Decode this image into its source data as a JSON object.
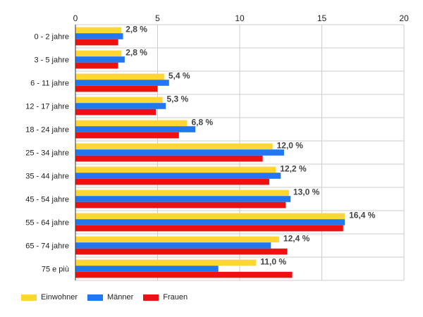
{
  "chart_data": {
    "type": "bar",
    "orientation": "horizontal",
    "xlim": [
      0,
      20
    ],
    "xticks": [
      "0",
      "5",
      "10",
      "15",
      "20"
    ],
    "categories": [
      "0 - 2 jahre",
      "3 - 5 jahre",
      "6 - 11 jahre",
      "12 - 17 jahre",
      "18 - 24 jahre",
      "25 - 34 jahre",
      "35 - 44 jahre",
      "45 - 54 jahre",
      "55 - 64 jahre",
      "65 - 74 jahre",
      "75 e più"
    ],
    "series": [
      {
        "name": "Einwohner",
        "color": "#ffd633",
        "values": [
          2.8,
          2.8,
          5.4,
          5.3,
          6.8,
          12.0,
          12.2,
          13.0,
          16.4,
          12.4,
          11.0
        ]
      },
      {
        "name": "Männer",
        "color": "#2277ee",
        "values": [
          2.9,
          3.0,
          5.7,
          5.5,
          7.3,
          12.7,
          12.5,
          13.1,
          16.4,
          11.9,
          8.7
        ]
      },
      {
        "name": "Frauen",
        "color": "#ee1111",
        "values": [
          2.6,
          2.6,
          5.0,
          4.9,
          6.3,
          11.4,
          11.8,
          12.8,
          16.3,
          12.9,
          13.2
        ]
      }
    ],
    "data_labels": [
      "2,8 %",
      "2,8 %",
      "5,4 %",
      "5,3 %",
      "6,8 %",
      "12,0 %",
      "12,2 %",
      "13,0 %",
      "16,4 %",
      "12,4 %",
      "11,0 %"
    ],
    "grid": true,
    "legend_position": "bottom-left"
  }
}
